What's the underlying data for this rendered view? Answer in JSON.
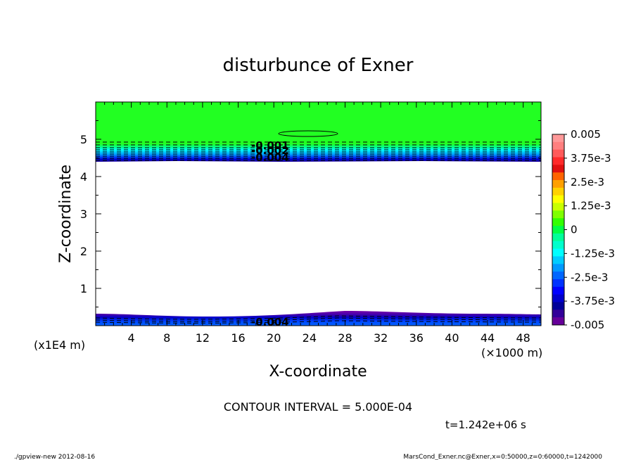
{
  "chart_data": {
    "type": "contour",
    "title": "disturbunce of Exner",
    "xlabel": "X-coordinate",
    "ylabel": "Z-coordinate",
    "x_unit": "(×1000 m)",
    "y_unit": "(x1E4 m)",
    "xlim": [
      0,
      50
    ],
    "ylim": [
      0,
      6
    ],
    "x_ticks": [
      "4",
      "8",
      "12",
      "16",
      "20",
      "24",
      "28",
      "32",
      "36",
      "40",
      "44",
      "48"
    ],
    "y_ticks": [
      "1",
      "2",
      "3",
      "4",
      "5"
    ],
    "contour_interval_text": "CONTOUR INTERVAL = 5.000E-04",
    "time_text": "t=1.242e+06 s",
    "contour_labels": [
      "-0.001",
      "-0.002",
      "-0.004",
      "-0.004"
    ],
    "colorbar": {
      "labels": [
        "0.005",
        "3.75e-3",
        "2.5e-3",
        "1.25e-3",
        "0",
        "-1.25e-3",
        "-2.5e-3",
        "-3.75e-3",
        "-0.005"
      ],
      "colors": [
        "#ff9999",
        "#ff7f7f",
        "#ff5a5a",
        "#ff2a2a",
        "#e01010",
        "#ff6400",
        "#ffa000",
        "#ffd200",
        "#ffff00",
        "#c8ff00",
        "#7fff00",
        "#33ff00",
        "#00ff44",
        "#00ff99",
        "#00ffcc",
        "#00ffff",
        "#00ccff",
        "#0099ff",
        "#0066ff",
        "#0033ff",
        "#0000ff",
        "#0000cc",
        "#000099",
        "#330099",
        "#660099"
      ]
    },
    "bands": {
      "top_layer_z": [
        4.4,
        6.0
      ],
      "top_layer_value": "near 0 (green)",
      "bottom_layer_z": [
        0.0,
        0.35
      ],
      "bottom_layer_value": "about -0.004 to -0.005 (blue/purple)"
    }
  },
  "footer": {
    "left": "./gpview-new   2012-08-16",
    "right": "MarsCond_Exner.nc@Exner,x=0:50000,z=0:60000,t=1242000"
  }
}
